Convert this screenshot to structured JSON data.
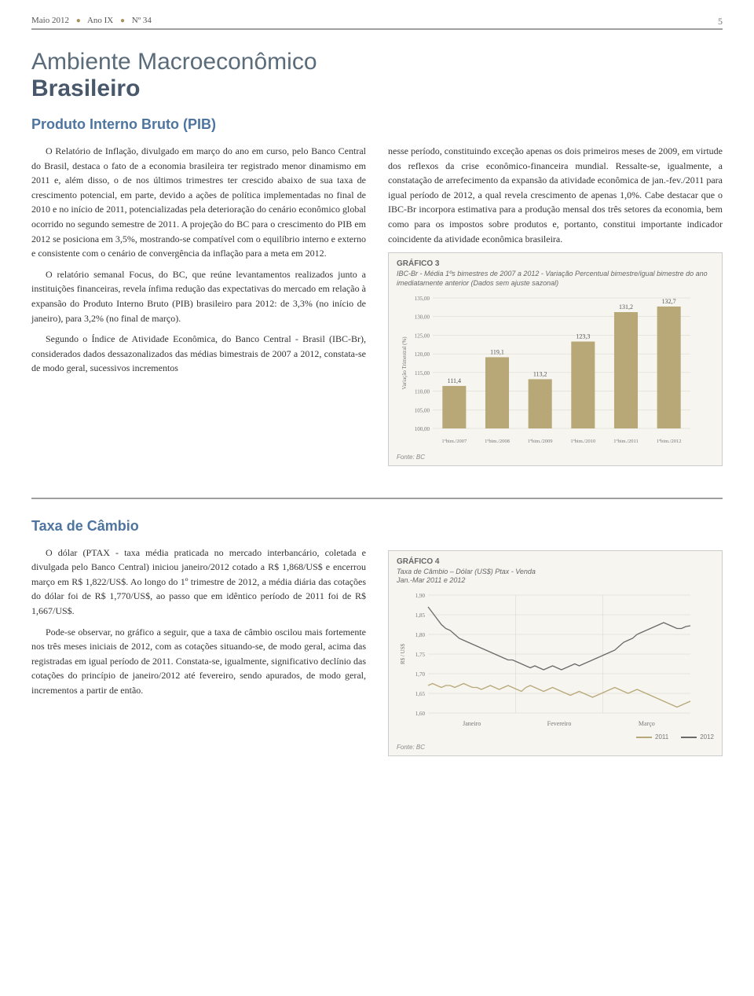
{
  "header": {
    "month_year": "Maio 2012",
    "ano": "Ano IX",
    "num": "Nº 34",
    "page": "5"
  },
  "titles": {
    "main_light": "Ambiente Macroeconômico",
    "main_bold": "Brasileiro",
    "section1": "Produto Interno Bruto (PIB)",
    "section2": "Taxa de Câmbio"
  },
  "pib": {
    "col1_p1": "O Relatório de Inflação, divulgado em março do ano em curso, pelo Banco Central do Brasil, destaca o fato de a economia brasileira ter registrado menor dinamismo em 2011 e, além disso, o de nos últimos trimestres ter crescido abaixo de sua taxa de crescimento potencial, em parte, devido a ações de política implementadas no final de 2010 e no início de 2011, potencializadas pela deterioração do cenário econômico global ocorrido no segundo semestre de 2011. A projeção do BC para o crescimento do PIB em 2012 se posiciona em 3,5%, mostrando-se compatível com o equilíbrio interno e externo e consistente com o cenário de convergência da inflação para a meta em 2012.",
    "col1_p2": "O relatório semanal Focus, do BC, que reúne levantamentos realizados junto a instituições financeiras, revela ínfima redução das expectativas do mercado em relação à expansão do Produto Interno Bruto (PIB) brasileiro para 2012: de 3,3% (no início de janeiro), para 3,2% (no final de março).",
    "col1_p3": "Segundo o Índice de Atividade Econômica, do Banco Central - Brasil (IBC-Br), considerados dados dessazonalizados das médias bimestrais de 2007 a 2012, constata-se de modo geral, sucessivos incrementos",
    "col2_p1": "nesse período, constituindo exceção apenas os dois primeiros meses de 2009, em virtude dos reflexos da crise econômico-financeira mundial. Ressalte-se, igualmente, a constatação de arrefecimento da expansão da atividade econômica de jan.-fev./2011 para igual período de 2012, a qual revela crescimento de apenas 1,0%. Cabe destacar que o IBC-Br incorpora estimativa para a produção mensal dos três setores da economia, bem como para os impostos sobre produtos e, portanto, constitui importante indicador coincidente da atividade econômica brasileira."
  },
  "chart3": {
    "label": "GRÁFICO 3",
    "subtitle": "IBC-Br - Média 1ºs bimestres de 2007 a 2012 - Variação Percentual bimestre/igual bimestre do ano imediatamente anterior (Dados sem ajuste sazonal)",
    "type": "bar",
    "categories": [
      "1ºbim./2007",
      "1ºbim./2008",
      "1ºbim./2009",
      "1ºbim./2010",
      "1ºbim./2011",
      "1ºbim./2012"
    ],
    "values": [
      111.4,
      119.1,
      113.2,
      123.3,
      131.2,
      132.7
    ],
    "value_labels": [
      "111,4",
      "119,1",
      "113,2",
      "123,3",
      "131,2",
      "132,7"
    ],
    "bar_color": "#b8a878",
    "ylim": [
      100,
      135
    ],
    "ytick_step": 5,
    "yticks": [
      "100,00",
      "105,00",
      "110,00",
      "115,00",
      "120,00",
      "125,00",
      "130,00",
      "135,00"
    ],
    "ylabel": "Variação Trimestral (%)",
    "background_color": "#f6f5f0",
    "grid_color": "#d8d4c8",
    "label_fontsize": 8,
    "source": "Fonte: BC"
  },
  "cambio": {
    "p1": "O dólar (PTAX - taxa média praticada no mercado interbancário, coletada e divulgada pelo Banco Central) iniciou janeiro/2012 cotado a R$ 1,868/US$ e encerrou março em R$ 1,822/US$. Ao longo do 1º trimestre de 2012, a média diária das cotações do dólar foi de R$ 1,770/US$, ao passo que em idêntico período de 2011 foi de R$ 1,667/US$.",
    "p2": "Pode-se observar, no gráfico a seguir, que a taxa de câmbio oscilou mais fortemente nos três meses iniciais de 2012, com as cotações situando-se, de modo geral, acima das registradas em igual período de 2011. Constata-se, igualmente, significativo declínio das cotações do princípio de janeiro/2012 até fevereiro, sendo apurados, de modo geral, incrementos a partir de então."
  },
  "chart4": {
    "label": "GRÁFICO 4",
    "subtitle": "Taxa de Câmbio – Dólar (US$) Ptax - Venda\nJan.-Mar 2011 e 2012",
    "type": "line",
    "categories": [
      "Janeiro",
      "Fevereiro",
      "Março"
    ],
    "ylabel": "R$ / US$",
    "ylim": [
      1.6,
      1.9
    ],
    "ytick_step": 0.05,
    "yticks": [
      "1,60",
      "1,65",
      "1,70",
      "1,75",
      "1,80",
      "1,85",
      "1,90"
    ],
    "series": [
      {
        "name": "2011",
        "color": "#b8a878",
        "points": [
          1.67,
          1.675,
          1.67,
          1.665,
          1.67,
          1.67,
          1.665,
          1.67,
          1.675,
          1.67,
          1.665,
          1.665,
          1.66,
          1.665,
          1.67,
          1.665,
          1.66,
          1.665,
          1.67,
          1.665,
          1.66,
          1.655,
          1.665,
          1.67,
          1.665,
          1.66,
          1.655,
          1.66,
          1.665,
          1.66,
          1.655,
          1.65,
          1.645,
          1.65,
          1.655,
          1.65,
          1.645,
          1.64,
          1.645,
          1.65,
          1.655,
          1.66,
          1.665,
          1.66,
          1.655,
          1.65,
          1.655,
          1.66,
          1.655,
          1.65,
          1.645,
          1.64,
          1.635,
          1.63,
          1.625,
          1.62,
          1.615,
          1.62,
          1.625,
          1.63
        ]
      },
      {
        "name": "2012",
        "color": "#6a6a6a",
        "points": [
          1.87,
          1.855,
          1.84,
          1.825,
          1.815,
          1.81,
          1.8,
          1.79,
          1.785,
          1.78,
          1.775,
          1.77,
          1.765,
          1.76,
          1.755,
          1.75,
          1.745,
          1.74,
          1.735,
          1.735,
          1.73,
          1.725,
          1.72,
          1.715,
          1.72,
          1.715,
          1.71,
          1.715,
          1.72,
          1.715,
          1.71,
          1.715,
          1.72,
          1.725,
          1.72,
          1.725,
          1.73,
          1.735,
          1.74,
          1.745,
          1.75,
          1.755,
          1.76,
          1.77,
          1.78,
          1.785,
          1.79,
          1.8,
          1.805,
          1.81,
          1.815,
          1.82,
          1.825,
          1.83,
          1.825,
          1.82,
          1.815,
          1.815,
          1.82,
          1.822
        ]
      }
    ],
    "background_color": "#f6f5f0",
    "grid_color": "#d8d4c8",
    "source": "Fonte: BC",
    "legend": [
      "2011",
      "2012"
    ]
  }
}
